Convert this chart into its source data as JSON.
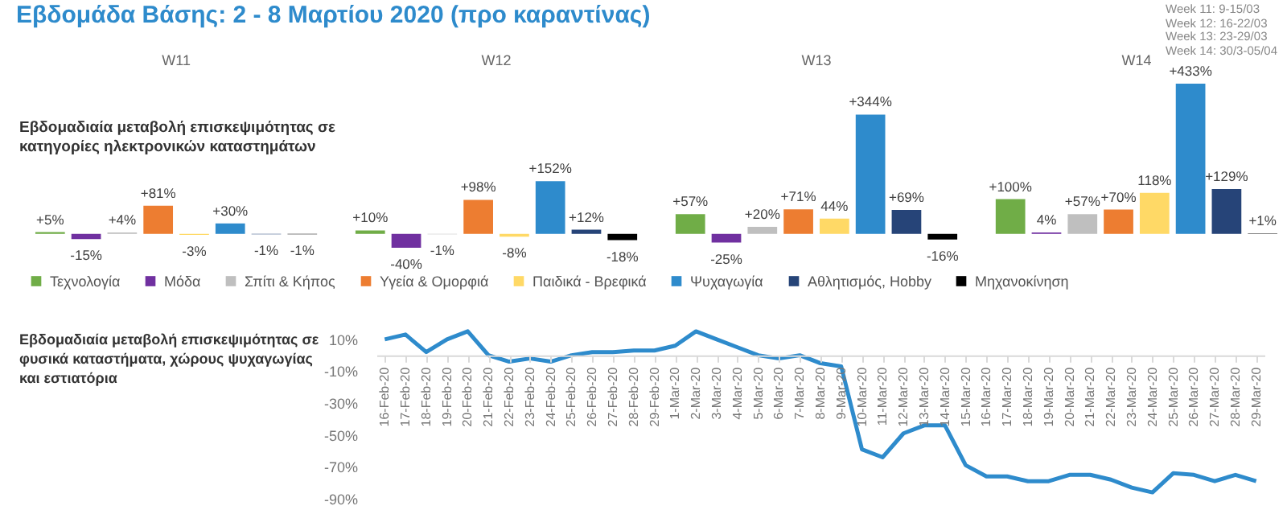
{
  "chart_data": [
    {
      "type": "bar",
      "title": "Εβδομάδα Βάσης: 2 - 8 Μαρτίου 2020 (προ καραντίνας)",
      "subtitle": "Εβδομαδιαία μεταβολή επισκεψιμότητας σε κατηγορίες ηλεκτρονικών καταστημάτων",
      "annotations": [
        "Week 11: 9-15/03",
        "Week 12: 16-22/03",
        "Week 13: 23-29/03",
        "Week 14: 30/3-05/04"
      ],
      "categories": [
        "W11",
        "W12",
        "W13",
        "W14"
      ],
      "legend": "bottom",
      "series": [
        {
          "name": "Τεχνολογία",
          "color": "#70ad47",
          "values": [
            5,
            10,
            57,
            100
          ],
          "value_labels": [
            "+5%",
            "+10%",
            "+57%",
            "+100%"
          ]
        },
        {
          "name": "Μόδα",
          "color": "#7030a0",
          "values": [
            -15,
            -40,
            -25,
            4
          ],
          "value_labels": [
            "-15%",
            "-40%",
            "-25%",
            "4%"
          ]
        },
        {
          "name": "Σπίτι & Κήπος",
          "color": "#bfbfbf",
          "values": [
            4,
            -1,
            20,
            57
          ],
          "value_labels": [
            "+4%",
            "-1%",
            "+20%",
            "+57%"
          ]
        },
        {
          "name": "Υγεία & Ομορφιά",
          "color": "#ed7d31",
          "values": [
            81,
            98,
            71,
            70
          ],
          "value_labels": [
            "+81%",
            "+98%",
            "+71%",
            "+70%"
          ]
        },
        {
          "name": "Παιδικά - Βρεφικά",
          "color": "#ffd966",
          "values": [
            -3,
            -8,
            44,
            118
          ],
          "value_labels": [
            "-3%",
            "-8%",
            "44%",
            "118%"
          ]
        },
        {
          "name": "Ψυχαγωγία",
          "color": "#2e8bcc",
          "values": [
            30,
            152,
            344,
            433
          ],
          "value_labels": [
            "+30%",
            "+152%",
            "+344%",
            "+433%"
          ]
        },
        {
          "name": "Αθλητισμός, Hobby",
          "color": "#264478",
          "values": [
            -1,
            12,
            69,
            129
          ],
          "value_labels": [
            "-1%",
            "+12%",
            "+69%",
            "+129%"
          ]
        },
        {
          "name": "Μηχανοκίνηση",
          "color": "#000000",
          "values": [
            -1,
            -18,
            -16,
            1
          ],
          "value_labels": [
            "-1%",
            "-18%",
            "-16%",
            "+1%"
          ]
        }
      ]
    },
    {
      "type": "line",
      "title": "Εβδομαδιαία μεταβολή επισκεψιμότητας σε φυσικά καταστήματα, χώρους ψυχαγωγίας και εστιατόρια",
      "categories": [
        "16-Feb-20",
        "17-Feb-20",
        "18-Feb-20",
        "19-Feb-20",
        "20-Feb-20",
        "21-Feb-20",
        "22-Feb-20",
        "23-Feb-20",
        "24-Feb-20",
        "25-Feb-20",
        "26-Feb-20",
        "27-Feb-20",
        "28-Feb-20",
        "29-Feb-20",
        "1-Mar-20",
        "2-Mar-20",
        "3-Mar-20",
        "4-Mar-20",
        "5-Mar-20",
        "6-Mar-20",
        "7-Mar-20",
        "8-Mar-20",
        "9-Mar-20",
        "10-Mar-20",
        "11-Mar-20",
        "12-Mar-20",
        "13-Mar-20",
        "14-Mar-20",
        "15-Mar-20",
        "16-Mar-20",
        "17-Mar-20",
        "18-Mar-20",
        "19-Mar-20",
        "20-Mar-20",
        "21-Mar-20",
        "22-Mar-20",
        "23-Mar-20",
        "24-Mar-20",
        "25-Mar-20",
        "26-Mar-20",
        "27-Mar-20",
        "28-Mar-20",
        "29-Mar-20"
      ],
      "ylim": [
        -90,
        20
      ],
      "yticks": [
        {
          "value": 10,
          "label": "10%"
        },
        {
          "value": -10,
          "label": "-10%"
        },
        {
          "value": -30,
          "label": "-30%"
        },
        {
          "value": -50,
          "label": "-50%"
        },
        {
          "value": -70,
          "label": "-70%"
        },
        {
          "value": -90,
          "label": "-90%"
        }
      ],
      "series": [
        {
          "color": "#2e8bcc",
          "values": [
            10,
            13,
            2,
            10,
            15,
            0,
            -4,
            -2,
            -4,
            0,
            2,
            2,
            3,
            3,
            6,
            15,
            10,
            5,
            0,
            -2,
            0,
            -5,
            -7,
            -59,
            -64,
            -49,
            -44,
            -44,
            -69,
            -76,
            -76,
            -79,
            -79,
            -75,
            -75,
            -78,
            -83,
            -86,
            -74,
            -75,
            -79,
            -75,
            -79
          ]
        }
      ]
    }
  ]
}
